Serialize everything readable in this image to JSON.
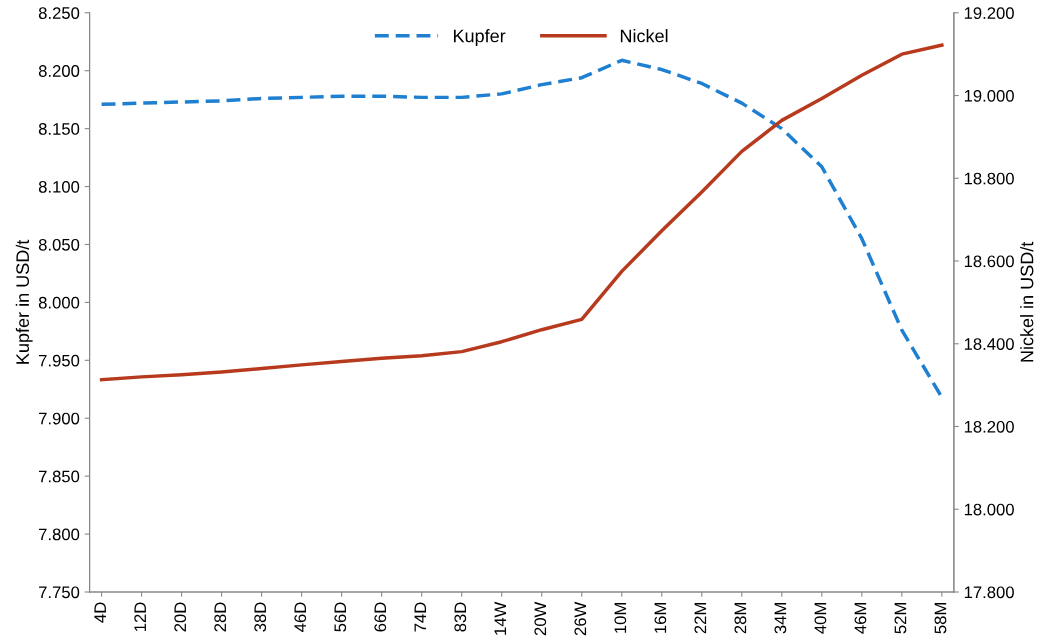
{
  "chart_data": {
    "type": "line",
    "ylabel": "Kupfer in USD/t",
    "y2label": "Nickel in USD/t",
    "categories": [
      "4D",
      "12D",
      "20D",
      "28D",
      "38D",
      "46D",
      "56D",
      "66D",
      "74D",
      "83D",
      "14W",
      "20W",
      "26W",
      "10M",
      "16M",
      "22M",
      "28M",
      "34M",
      "40M",
      "46M",
      "52M",
      "58M"
    ],
    "series": [
      {
        "name": "Kupfer",
        "color": "#1f7fd0",
        "line_style": "dashed",
        "values": [
          8171,
          8172,
          8173,
          8174,
          8176,
          8177,
          8178,
          8178,
          8177,
          8177,
          8180,
          8188,
          8194,
          8209,
          8201,
          8189,
          8172,
          8150,
          8117,
          8055,
          7976,
          7918
        ]
      },
      {
        "name": "Nickel",
        "color": "#b83a1e",
        "line_style": "solid",
        "axis": "y2",
        "values": [
          18313,
          18320,
          18325,
          18332,
          18340,
          18349,
          18357,
          18365,
          18371,
          18381,
          18405,
          18434,
          18459,
          18575,
          18673,
          18767,
          18865,
          18940,
          18993,
          19049,
          19100,
          19122
        ]
      }
    ],
    "ylim": [
      7750,
      8250
    ],
    "yticks": [
      {
        "value": 7750,
        "label": "7.750"
      },
      {
        "value": 7800,
        "label": "7.800"
      },
      {
        "value": 7850,
        "label": "7.850"
      },
      {
        "value": 7900,
        "label": "7.900"
      },
      {
        "value": 7950,
        "label": "7.950"
      },
      {
        "value": 8000,
        "label": "8.000"
      },
      {
        "value": 8050,
        "label": "8.050"
      },
      {
        "value": 8100,
        "label": "8.100"
      },
      {
        "value": 8150,
        "label": "8.150"
      },
      {
        "value": 8200,
        "label": "8.200"
      },
      {
        "value": 8250,
        "label": "8.250"
      }
    ],
    "y2lim": [
      17800,
      19200
    ],
    "y2ticks": [
      {
        "value": 17800,
        "label": "17.800"
      },
      {
        "value": 18000,
        "label": "18.000"
      },
      {
        "value": 18200,
        "label": "18.200"
      },
      {
        "value": 18400,
        "label": "18.400"
      },
      {
        "value": 18600,
        "label": "18.600"
      },
      {
        "value": 18800,
        "label": "18.800"
      },
      {
        "value": 19000,
        "label": "19.000"
      },
      {
        "value": 19200,
        "label": "19.200"
      }
    ],
    "grid": false,
    "legend": "top",
    "marker": "none"
  }
}
